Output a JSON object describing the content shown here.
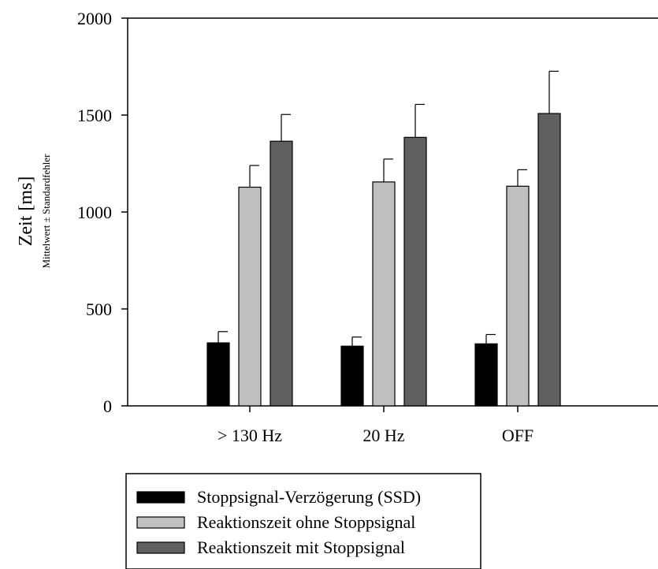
{
  "chart_data": {
    "type": "bar",
    "title": "",
    "ylabel": "Zeit [ms]",
    "ylabel_sub": "Mittelwert ± Standardfehler",
    "xlabel": "",
    "ylim": [
      0,
      2000
    ],
    "yticks": [
      0,
      500,
      1000,
      1500,
      2000
    ],
    "categories": [
      "> 130 Hz",
      "20 Hz",
      "OFF"
    ],
    "grid": false,
    "legend_position": "bottom",
    "series": [
      {
        "name": "Stoppsignal-Verzögerung (SSD)",
        "color": "#000000",
        "values": [
          325,
          308,
          320
        ],
        "errors": [
          58,
          47,
          48
        ]
      },
      {
        "name": "Reaktionszeit ohne Stoppsignal",
        "color": "#c0c0c0",
        "values": [
          1128,
          1155,
          1133
        ],
        "errors": [
          112,
          118,
          85
        ]
      },
      {
        "name": "Reaktionszeit mit Stoppsignal",
        "color": "#606060",
        "values": [
          1365,
          1385,
          1508
        ],
        "errors": [
          138,
          170,
          218
        ]
      }
    ]
  }
}
